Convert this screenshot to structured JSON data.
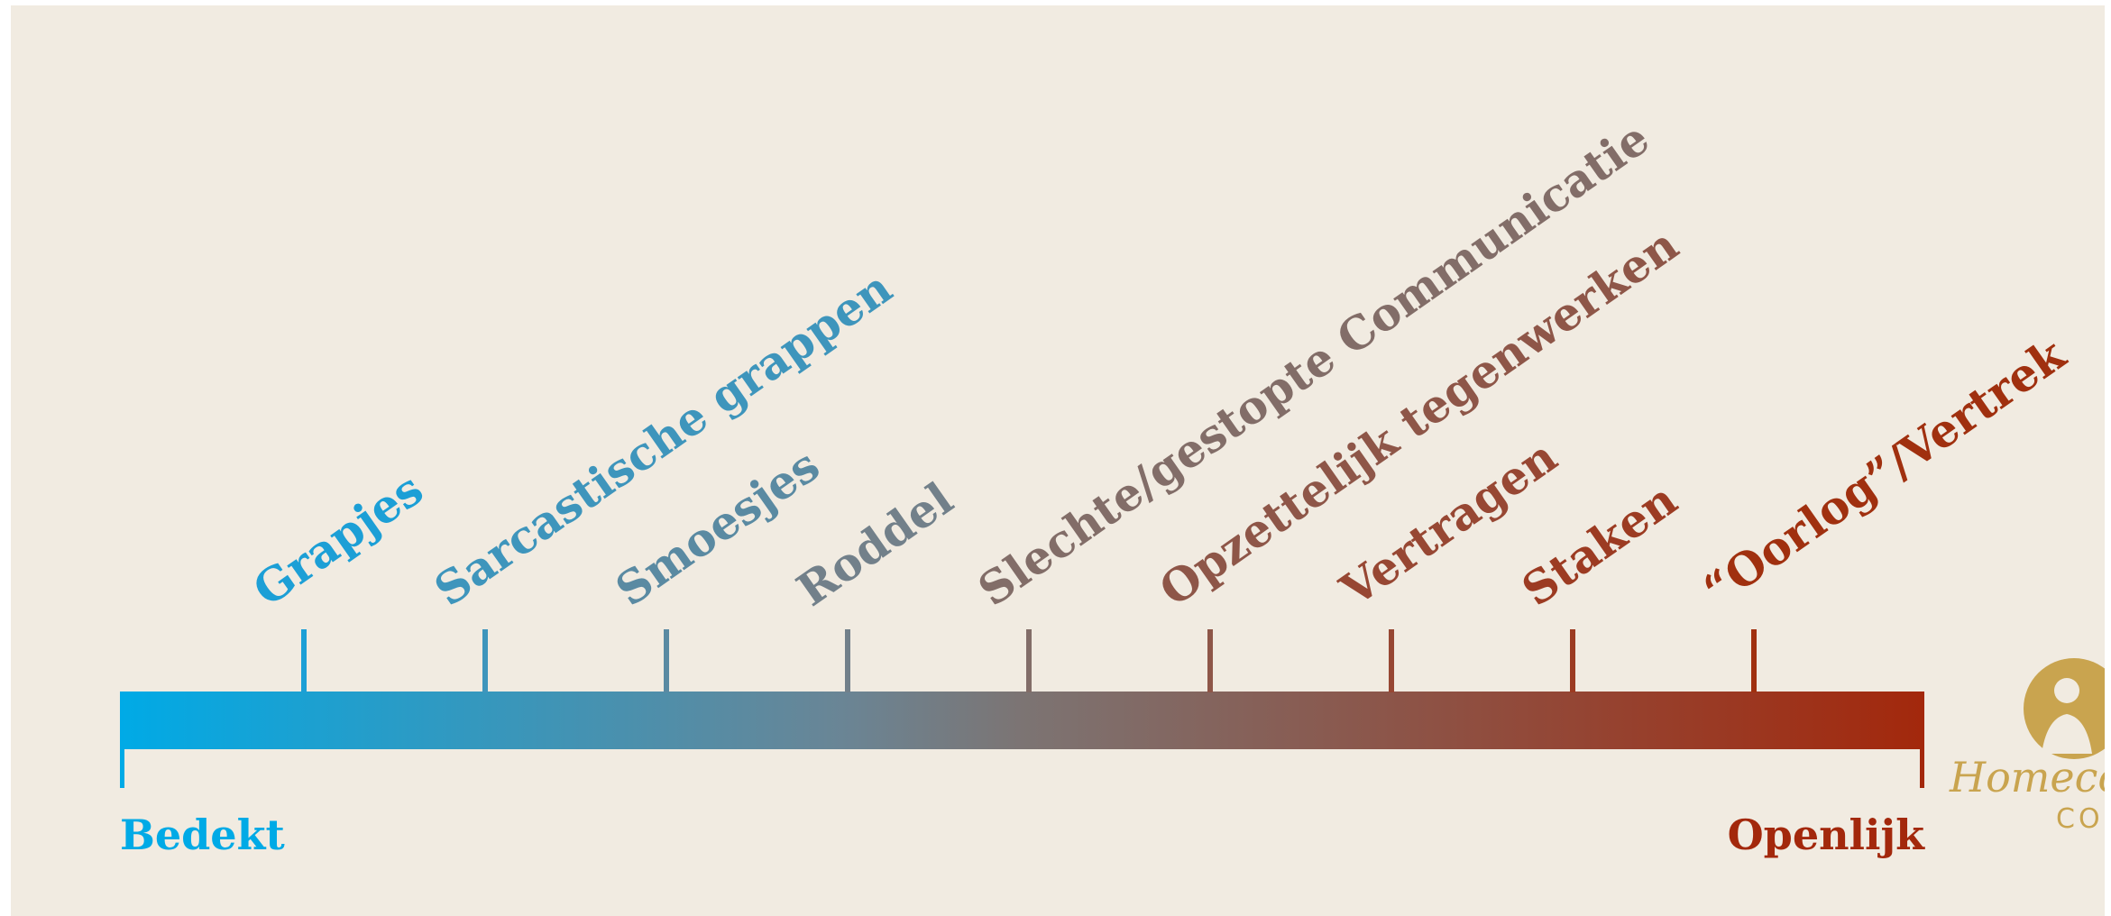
{
  "scale": {
    "left_label": "Bedekt",
    "right_label": "Openlijk",
    "left_color": "#00aae6",
    "right_color": "#a3280c",
    "behaviors": [
      {
        "label": "Grapjes",
        "color": "#1c9fd6"
      },
      {
        "label": "Sarcastische grappen",
        "color": "#3e95bc"
      },
      {
        "label": "Smoesjes",
        "color": "#5a8aa2"
      },
      {
        "label": "Roddel",
        "color": "#72808a"
      },
      {
        "label": "Slechte/gestopte Communicatie",
        "color": "#826d68"
      },
      {
        "label": "Opzettelijk tegenwerken",
        "color": "#8e5648"
      },
      {
        "label": "Vertragen",
        "color": "#974733"
      },
      {
        "label": "Staken",
        "color": "#9c3b22"
      },
      {
        "label": "“Oorlog”/Vertrek",
        "color": "#a0300f"
      }
    ]
  },
  "logo": {
    "name": "Homecor",
    "sub": "CO",
    "color": "#c9a44f"
  }
}
